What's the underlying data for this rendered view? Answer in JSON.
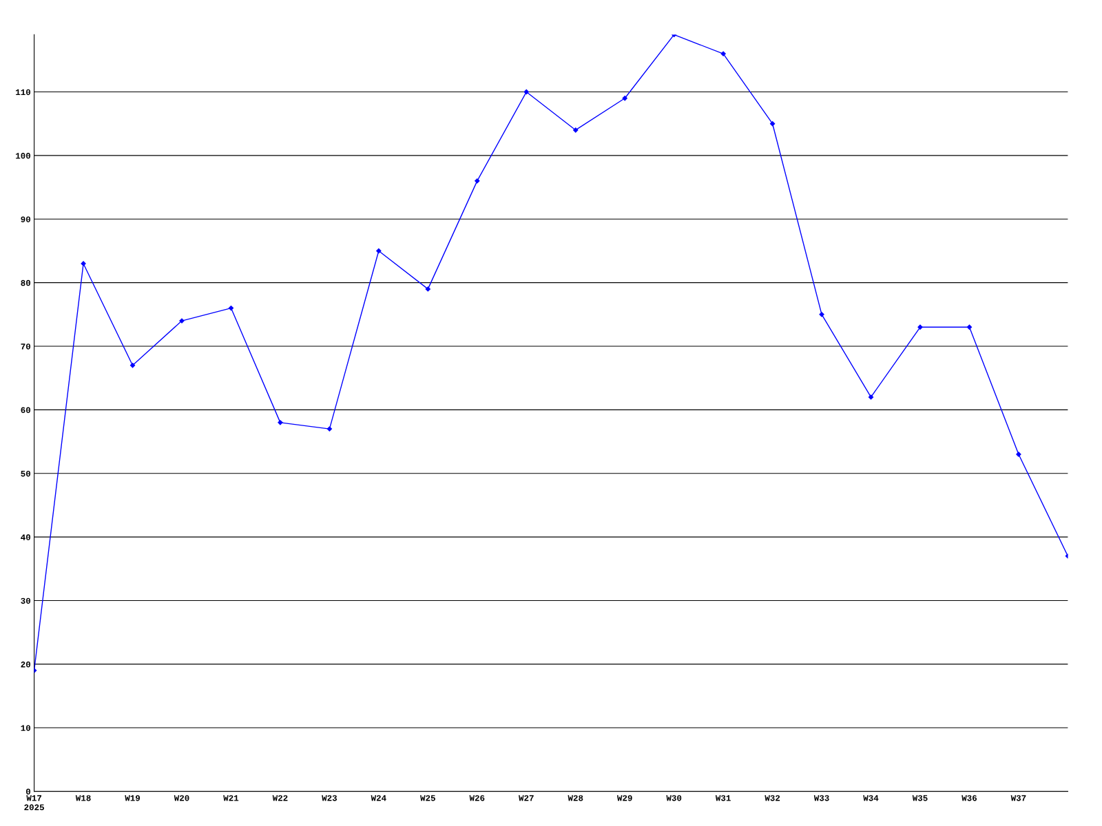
{
  "chart_data": {
    "type": "line",
    "categories": [
      "W17\n2025",
      "W18",
      "W19",
      "W20",
      "W21",
      "W22",
      "W23",
      "W24",
      "W25",
      "W26",
      "W27",
      "W28",
      "W29",
      "W30",
      "W31",
      "W32",
      "W33",
      "W34",
      "W35",
      "W36",
      "W37",
      null
    ],
    "series": [
      {
        "color": "#0000ff",
        "values": [
          19,
          83,
          67,
          74,
          76,
          58,
          57,
          85,
          79,
          96,
          110,
          104,
          109,
          119,
          116,
          105,
          75,
          62,
          73,
          73,
          53,
          37
        ]
      }
    ],
    "ylim": [
      0,
      119
    ],
    "yticks": [
      0,
      10,
      20,
      30,
      40,
      50,
      60,
      70,
      80,
      90,
      100,
      110
    ],
    "grid": "y",
    "marker": "diamond",
    "line_style": "solid"
  }
}
